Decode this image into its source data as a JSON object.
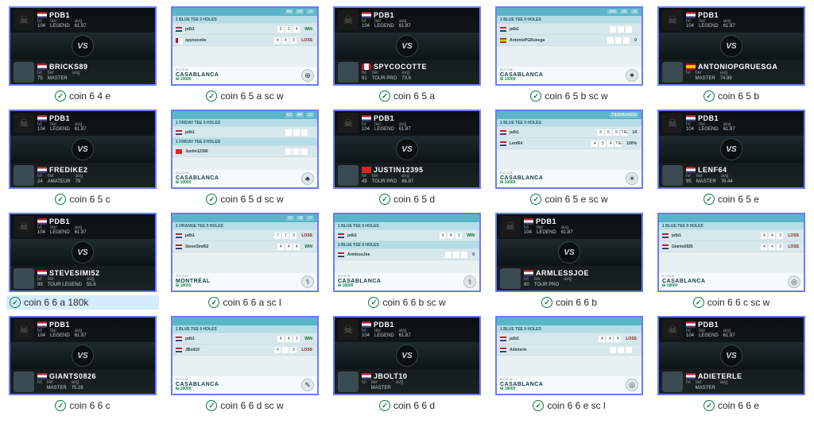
{
  "common": {
    "stats_labels": {
      "lvl": "lvl",
      "tier": "tier",
      "avg": "avg"
    },
    "vs": "VS",
    "room_label": "ROOM"
  },
  "thumbs": [
    {
      "id": 0,
      "type": "vs",
      "caption": "coin 6 4 e",
      "p1": {
        "name": "PDB1",
        "flag": "us",
        "lvl": "104",
        "tier": "LEGEND",
        "avg": "61.87"
      },
      "p2": {
        "name": "BRICKS89",
        "flag": "us",
        "lvl": "75",
        "tier": "MASTER",
        "avg": ""
      }
    },
    {
      "id": 1,
      "type": "sc",
      "caption": "coin 6 5 a sc w",
      "header": [
        "4R",
        "5R",
        "14"
      ],
      "rows": [
        {
          "label": "1 BLUE TEE 9 HOLES",
          "isLabel": true
        },
        {
          "name": "pdb1",
          "flag": "us",
          "cells": [
            "5",
            "3",
            "4"
          ],
          "result": "WIN"
        },
        {
          "name": "spycocotte",
          "flag": "ca",
          "cells": [
            "4",
            "4",
            "3"
          ],
          "result": "LOSS"
        }
      ],
      "room": "CASABLANCA",
      "prize": "10000",
      "emblem": "⊕"
    },
    {
      "id": 2,
      "type": "vs",
      "caption": "coin 6 5 a",
      "p1": {
        "name": "PDB1",
        "flag": "us",
        "lvl": "104",
        "tier": "LEGEND",
        "avg": "61.87"
      },
      "p2": {
        "name": "SPYCOCOTTE",
        "flag": "ca",
        "lvl": "91",
        "tier": "TOUR PRO",
        "avg": "73.6"
      }
    },
    {
      "id": 3,
      "type": "sc",
      "caption": "coin 6 5 b sc w",
      "header": [
        "10R",
        "1R",
        "16"
      ],
      "rows": [
        {
          "label": "1 BLUE TEE 9 HOLES",
          "isLabel": true
        },
        {
          "name": "pdb1",
          "flag": "us",
          "cells": [
            "",
            "",
            ""
          ],
          "result": ""
        },
        {
          "name": "AntonioPGRuesga",
          "flag": "es",
          "cells": [
            "",
            "",
            ""
          ],
          "result": "0"
        }
      ],
      "room": "CASABLANCA",
      "prize": "10000",
      "emblem": "✷"
    },
    {
      "id": 4,
      "type": "vs",
      "caption": "coin 6 5 b",
      "p1": {
        "name": "PDB1",
        "flag": "us",
        "lvl": "104",
        "tier": "LEGEND",
        "avg": "61.87"
      },
      "p2": {
        "name": "ANTONIOPGRUESGA",
        "flag": "es",
        "lvl": "",
        "tier": "MASTER",
        "avg": "74.99"
      }
    },
    {
      "id": 5,
      "type": "vs",
      "caption": "coin 6 5 c",
      "p1": {
        "name": "PDB1",
        "flag": "us",
        "lvl": "104",
        "tier": "LEGEND",
        "avg": "61.87"
      },
      "p2": {
        "name": "FREDIKE2",
        "flag": "us",
        "lvl": "24",
        "tier": "AMATEUR",
        "avg": "79"
      }
    },
    {
      "id": 6,
      "type": "sc",
      "caption": "coin 6 5 d sc w",
      "header": [
        "6D",
        "4R",
        "10"
      ],
      "rows": [
        {
          "label": "1 FRIDAY TEE 9 HOLES",
          "isLabel": true
        },
        {
          "name": "pdb1",
          "flag": "us",
          "cells": [
            "",
            "",
            ""
          ],
          "result": ""
        },
        {
          "label": "1 FRIDAY TEE 9 HOLES",
          "isLabel": true
        },
        {
          "name": "Justin12395",
          "flag": "vn",
          "cells": [
            "",
            "",
            ""
          ],
          "result": ""
        }
      ],
      "room": "CASABLANCA",
      "prize": "10000",
      "emblem": "♣"
    },
    {
      "id": 7,
      "type": "vs",
      "caption": "coin 6 5 d",
      "p1": {
        "name": "PDB1",
        "flag": "us",
        "lvl": "104",
        "tier": "LEGEND",
        "avg": "61.87"
      },
      "p2": {
        "name": "JUSTIN12395",
        "flag": "vn",
        "lvl": "49",
        "tier": "TOUR PRO",
        "avg": "86.87"
      }
    },
    {
      "id": 8,
      "type": "sc",
      "caption": "coin 6 5 e sc w",
      "header": [
        "",
        "",
        "TIEBREAKER"
      ],
      "rows": [
        {
          "label": "1 BLUE TEE 9 HOLES",
          "isLabel": true
        },
        {
          "name": "pdb1",
          "flag": "us",
          "cells": [
            "3",
            "5",
            "5",
            "TIE"
          ],
          "result": "14"
        },
        {
          "name": "Lenf64",
          "flag": "us",
          "cells": [
            "4",
            "5",
            "4",
            "TIE"
          ],
          "result": "100%"
        }
      ],
      "room": "CASABLANCA",
      "prize": "10000",
      "emblem": "☀"
    },
    {
      "id": 9,
      "type": "vs",
      "caption": "coin 6 5 e",
      "p1": {
        "name": "PDB1",
        "flag": "us",
        "lvl": "104",
        "tier": "LEGEND",
        "avg": "61.87"
      },
      "p2": {
        "name": "LENF64",
        "flag": "us",
        "lvl": "95",
        "tier": "MASTER",
        "avg": "76.44"
      }
    },
    {
      "id": 10,
      "type": "vs",
      "caption": "coin 6 6 a 180k",
      "selected": true,
      "p1": {
        "name": "PDB1",
        "flag": "us",
        "lvl": "104",
        "tier": "LEGEND",
        "avg": "61.87"
      },
      "p2": {
        "name": "STEVESIMI52",
        "flag": "us",
        "lvl": "99",
        "tier": "TOUR LEGEND",
        "avg": "55.8"
      }
    },
    {
      "id": 11,
      "type": "sc",
      "caption": "coin 6 6 a sc l",
      "header": [
        "10",
        "19",
        "17"
      ],
      "rows": [
        {
          "label": "1 ORANGE TEE 9 HOLES",
          "isLabel": true
        },
        {
          "name": "pdb1",
          "flag": "us",
          "cells": [
            "7",
            "7",
            "3"
          ],
          "result": "LOSS"
        },
        {
          "name": "SteveSimi52",
          "flag": "us",
          "cells": [
            "4",
            "4",
            "4"
          ],
          "result": "WIN"
        }
      ],
      "room": "MONTRÉAL",
      "prize": "18000",
      "emblem": "⚕"
    },
    {
      "id": 12,
      "type": "sc",
      "caption": "coin 6 6 b sc w",
      "header": [
        "",
        "",
        ""
      ],
      "rows": [
        {
          "label": "1 BLUE TEE 9 HOLES",
          "isLabel": true
        },
        {
          "name": "pdb1",
          "flag": "us",
          "cells": [
            "4",
            "4",
            "3"
          ],
          "result": "WIN"
        },
        {
          "label": "1 BLUE TEE 9 HOLES",
          "isLabel": true
        },
        {
          "name": "ArmlessJoe",
          "flag": "us",
          "cells": [
            "",
            "",
            ""
          ],
          "result": "0"
        }
      ],
      "room": "CASABLANCA",
      "prize": "18000",
      "emblem": "⚕"
    },
    {
      "id": 13,
      "type": "vs",
      "caption": "coin 6 6 b",
      "p1": {
        "name": "PDB1",
        "flag": "us",
        "lvl": "104",
        "tier": "LEGEND",
        "avg": "61.87"
      },
      "p2": {
        "name": "ARMLESSJOE",
        "flag": "us",
        "lvl": "60",
        "tier": "TOUR PRO",
        "avg": ""
      }
    },
    {
      "id": 14,
      "type": "sc",
      "caption": "coin 6 6 c sc w",
      "header": [
        "",
        "",
        ""
      ],
      "rows": [
        {
          "label": "1 BLUE TEE 9 HOLES",
          "isLabel": true
        },
        {
          "name": "pdb1",
          "flag": "us",
          "cells": [
            "4",
            "4",
            "3"
          ],
          "result": "LOSS"
        },
        {
          "name": "Giants0826",
          "flag": "us",
          "cells": [
            "4",
            "4",
            "3"
          ],
          "result": "LOSS"
        }
      ],
      "room": "CASABLANCA",
      "prize": "18000",
      "emblem": "◎"
    },
    {
      "id": 15,
      "type": "vs",
      "caption": "coin 6 6 c",
      "p1": {
        "name": "PDB1",
        "flag": "us",
        "lvl": "104",
        "tier": "LEGEND",
        "avg": "61.87"
      },
      "p2": {
        "name": "GIANTS0826",
        "flag": "us",
        "lvl": "",
        "tier": "MASTER",
        "avg": "75.28"
      }
    },
    {
      "id": 16,
      "type": "sc",
      "caption": "coin 6 6 d sc w",
      "header": [
        "",
        "",
        ""
      ],
      "rows": [
        {
          "label": "1 BLUE TEE 9 HOLES",
          "isLabel": true
        },
        {
          "name": "pdb1",
          "flag": "us",
          "cells": [
            "4",
            "4",
            "3"
          ],
          "result": "WIN"
        },
        {
          "name": "JBolt10",
          "flag": "us",
          "cells": [
            "4",
            "",
            "3"
          ],
          "result": "LOSS"
        }
      ],
      "room": "CASABLANCA",
      "prize": "18000",
      "emblem": "✎"
    },
    {
      "id": 17,
      "type": "vs",
      "caption": "coin 6 6 d",
      "p1": {
        "name": "PDB1",
        "flag": "us",
        "lvl": "104",
        "tier": "LEGEND",
        "avg": "61.87"
      },
      "p2": {
        "name": "JBOLT10",
        "flag": "us",
        "lvl": "",
        "tier": "MASTER",
        "avg": ""
      }
    },
    {
      "id": 18,
      "type": "sc",
      "caption": "coin 6 6 e sc l",
      "header": [
        "",
        "",
        ""
      ],
      "rows": [
        {
          "label": "1 BLUE TEE 9 HOLES",
          "isLabel": true
        },
        {
          "name": "pdb1",
          "flag": "us",
          "cells": [
            "4",
            "4",
            "4"
          ],
          "result": "LOSS"
        },
        {
          "name": "AdieterIe",
          "flag": "us",
          "cells": [
            "",
            "",
            ""
          ],
          "result": ""
        }
      ],
      "room": "CASABLANCA",
      "prize": "18000",
      "emblem": "◎"
    },
    {
      "id": 19,
      "type": "vs",
      "caption": "coin 6 6 e",
      "p1": {
        "name": "PDB1",
        "flag": "us",
        "lvl": "104",
        "tier": "LEGEND",
        "avg": "61.87"
      },
      "p2": {
        "name": "ADIETERLE",
        "flag": "us",
        "lvl": "",
        "tier": "MASTER",
        "avg": ""
      }
    }
  ]
}
